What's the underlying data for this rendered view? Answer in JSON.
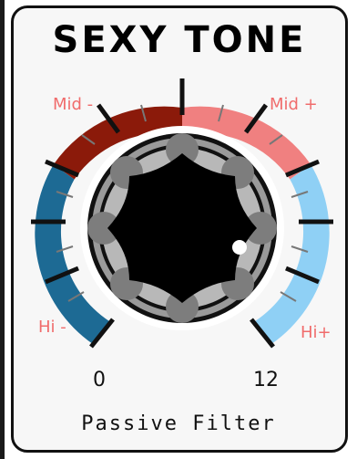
{
  "title": "SEXY TONE",
  "labels": {
    "mid_minus": "Mid -",
    "mid_plus": "Mid +",
    "hi_minus": "Hi -",
    "hi_plus": "Hi+"
  },
  "scale": {
    "min": "0",
    "max": "12"
  },
  "subtitle": "Passive Filter",
  "knob": {
    "indicator_icon": "dot-indicator-icon"
  },
  "colors": {
    "mid_minus_arc": "#8b1a0a",
    "mid_plus_arc": "#f08080",
    "hi_minus_arc": "#1d6a94",
    "hi_plus_arc": "#8fd0f5",
    "label_red": "#f06c6c"
  }
}
